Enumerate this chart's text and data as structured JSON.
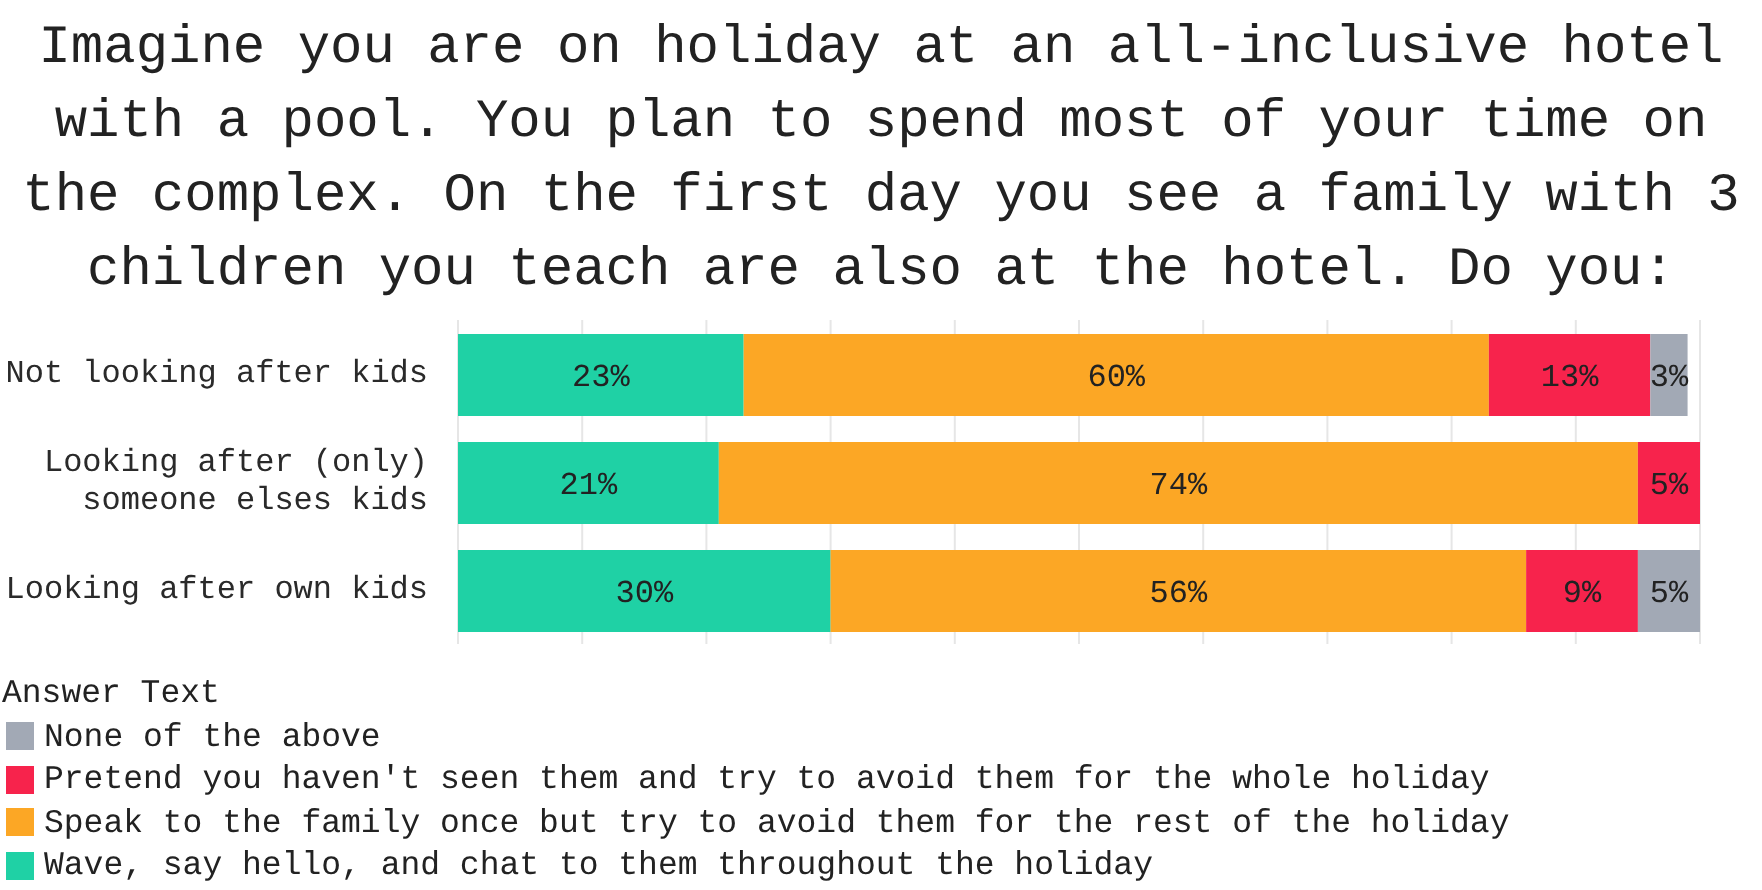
{
  "chart_data": {
    "type": "bar",
    "title": "Imagine you are on holiday at an all-inclusive hotel with a pool. You plan to spend most of your time on the complex. On the first day you see a family with 3 children you teach are also at the hotel. Do you:",
    "categories": [
      "Not looking after kids",
      "Looking after (only) someone elses kids",
      "Looking after own kids"
    ],
    "orientation": "horizontal",
    "stacked": true,
    "series": [
      {
        "name": "Wave, say hello, and chat to them throughout the holiday",
        "color": "#1fd1a5",
        "values": [
          23,
          21,
          30
        ],
        "value_labels": [
          "23%",
          "21%",
          "30%"
        ]
      },
      {
        "name": "Speak to the family once but try to avoid them for the rest of the holiday",
        "color": "#fca725",
        "values": [
          60,
          74,
          56
        ],
        "value_labels": [
          "60%",
          "74%",
          "56%"
        ]
      },
      {
        "name": "Pretend you haven't seen them and try to avoid them for the whole holiday",
        "color": "#f7234c",
        "values": [
          13,
          5,
          9
        ],
        "value_labels": [
          "13%",
          "5%",
          "9%"
        ]
      },
      {
        "name": "None of the above",
        "color": "#a2a9b5",
        "values": [
          3,
          null,
          5
        ],
        "value_labels": [
          "3%",
          null,
          "5%"
        ]
      }
    ],
    "xlim": [
      0,
      100
    ],
    "xticks": [
      {
        "value": 0,
        "label": null
      },
      {
        "value": 10,
        "label": null
      },
      {
        "value": 20,
        "label": null
      },
      {
        "value": 30,
        "label": null
      },
      {
        "value": 40,
        "label": null
      },
      {
        "value": 50,
        "label": null
      },
      {
        "value": 60,
        "label": null
      },
      {
        "value": 70,
        "label": null
      },
      {
        "value": 80,
        "label": null
      },
      {
        "value": 90,
        "label": null
      },
      {
        "value": 100,
        "label": null
      }
    ],
    "grid": "x",
    "legend": "bottom",
    "legend_title": "Answer Text",
    "tick_labels": "y"
  }
}
